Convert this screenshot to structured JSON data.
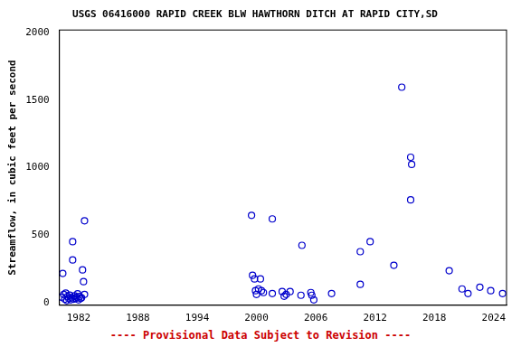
{
  "chart_data": {
    "type": "scatter",
    "title": "USGS 06416000 RAPID CREEK BLW HAWTHORN DITCH AT RAPID CITY,SD",
    "y_label": "Streamflow, in cubic feet per second",
    "annotations": [
      "---- Provisional Data Subject to Revision ----"
    ],
    "x": [
      1980.3,
      1980.4,
      1980.5,
      1980.6,
      1980.7,
      1980.8,
      1980.9,
      1981.0,
      1981.1,
      1981.2,
      1981.3,
      1981.4,
      1981.4,
      1981.5,
      1981.6,
      1981.7,
      1981.8,
      1981.9,
      1982.0,
      1982.1,
      1982.2,
      1982.3,
      1982.4,
      1982.5,
      1982.6,
      1982.6,
      1999.5,
      1999.6,
      1999.8,
      1999.9,
      2000.0,
      2000.2,
      2000.4,
      2000.5,
      2000.7,
      2001.6,
      2001.6,
      2002.6,
      2002.8,
      2003.0,
      2003.4,
      2004.5,
      2004.6,
      2005.5,
      2005.6,
      2005.8,
      2007.6,
      2010.5,
      2010.5,
      2011.5,
      2013.9,
      2014.7,
      2015.6,
      2015.7,
      2015.6,
      2019.5,
      2020.8,
      2021.4,
      2022.6,
      2023.7,
      2024.9
    ],
    "values": [
      40,
      216,
      60,
      25,
      70,
      15,
      45,
      30,
      55,
      20,
      35,
      451,
      316,
      25,
      50,
      30,
      40,
      65,
      20,
      45,
      30,
      35,
      242,
      155,
      606,
      60,
      646,
      202,
      175,
      88,
      60,
      101,
      175,
      88,
      74,
      620,
      67,
      81,
      47,
      60,
      81,
      54,
      424,
      74,
      54,
      20,
      67,
      377,
      135,
      451,
      276,
      1596,
      1077,
      1024,
      761,
      236,
      101,
      67,
      114,
      88,
      67
    ],
    "color": "#0000cc",
    "marker": "circle",
    "xlim": [
      1980.06,
      2025.3
    ],
    "xticks": [
      1982,
      1988,
      1994,
      2000,
      2006,
      2012,
      2018,
      2024
    ],
    "ylim": [
      -20,
      2020
    ],
    "yticks": [
      0,
      500,
      1000,
      1500,
      2000
    ],
    "grid": false
  }
}
